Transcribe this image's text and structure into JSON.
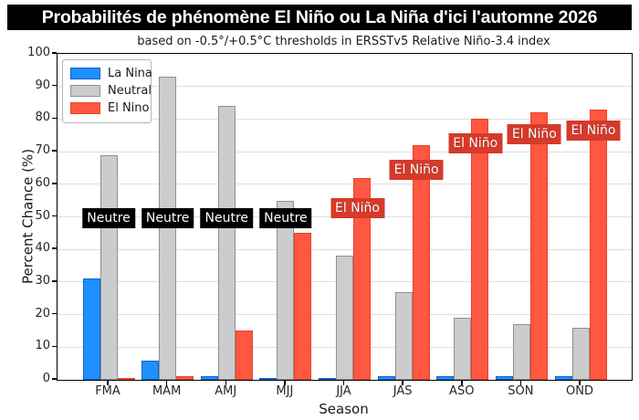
{
  "title": "Probabilités de phénomène El Niño ou La Niña d'ici l'automne 2026",
  "subtitle": "based on -0.5°/+0.5°C thresholds in ERSSTv5 Relative Niño-3.4 index",
  "colors": {
    "title_bg": "#000000",
    "title_fg": "#ffffff",
    "grid": "#dedede",
    "annotation_neutral_bg": "#000000",
    "annotation_elnino_bg": "#d53a2b"
  },
  "chart_data": {
    "type": "bar",
    "title": "Probabilités de phénomène El Niño ou La Niña d'ici l'automne 2026",
    "subtitle": "based on -0.5°/+0.5°C thresholds in ERSSTv5 Relative Niño-3.4 index",
    "xlabel": "Season",
    "ylabel": "Percent Chance (%)",
    "ylim": [
      0,
      100
    ],
    "yticks": [
      0,
      10,
      20,
      30,
      40,
      50,
      60,
      70,
      80,
      90,
      100
    ],
    "grid": "horizontal",
    "legend_position": "upper left",
    "categories": [
      "FMA",
      "MAM",
      "AMJ",
      "MJJ",
      "JJA",
      "JAS",
      "ASO",
      "SON",
      "OND"
    ],
    "series": [
      {
        "name": "La Nina",
        "color": "#1e90ff",
        "edge": "#1060c8",
        "values": [
          31,
          6,
          1,
          0,
          0,
          1,
          1,
          1,
          1
        ]
      },
      {
        "name": "Neutral",
        "color": "#cccccc",
        "edge": "#909090",
        "values": [
          69,
          93,
          84,
          55,
          38,
          27,
          19,
          17,
          16
        ]
      },
      {
        "name": "El Nino",
        "color": "#ff5740",
        "edge": "#e8402c",
        "values": [
          0,
          1,
          15,
          45,
          62,
          72,
          80,
          82,
          83
        ]
      }
    ],
    "annotations": [
      {
        "text": "Neutre",
        "category": "FMA",
        "style": "neutral",
        "y_pct": 49.5
      },
      {
        "text": "Neutre",
        "category": "MAM",
        "style": "neutral",
        "y_pct": 49.5
      },
      {
        "text": "Neutre",
        "category": "AMJ",
        "style": "neutral",
        "y_pct": 49.5
      },
      {
        "text": "Neutre",
        "category": "MJJ",
        "style": "neutral",
        "y_pct": 49.5
      },
      {
        "text": "El Niño",
        "category": "JJA",
        "style": "elnino",
        "y_pct": 52.7
      },
      {
        "text": "El Niño",
        "category": "JAS",
        "style": "elnino",
        "y_pct": 64.4
      },
      {
        "text": "El Niño",
        "category": "ASO",
        "style": "elnino",
        "y_pct": 72.5
      },
      {
        "text": "El Niño",
        "category": "SON",
        "style": "elnino",
        "y_pct": 75.3
      },
      {
        "text": "El Niño",
        "category": "OND",
        "style": "elnino",
        "y_pct": 76.5
      }
    ]
  },
  "legend": {
    "items": [
      {
        "label": "La Nina"
      },
      {
        "label": "Neutral"
      },
      {
        "label": "El Nino"
      }
    ]
  }
}
